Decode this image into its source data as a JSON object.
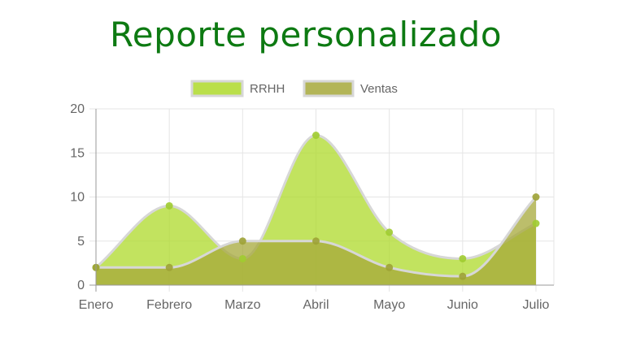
{
  "page": {
    "title": "Reporte personalizado"
  },
  "chart_data": {
    "type": "area",
    "title": "Reporte personalizado",
    "categories": [
      "Enero",
      "Febrero",
      "Marzo",
      "Abril",
      "Mayo",
      "Junio",
      "Julio"
    ],
    "series": [
      {
        "name": "RRHH",
        "values": [
          2,
          9,
          3,
          17,
          6,
          3,
          7
        ],
        "fill": "#aed92a",
        "line": "#a0cc30"
      },
      {
        "name": "Ventas",
        "values": [
          2,
          2,
          5,
          5,
          2,
          1,
          10
        ],
        "fill": "#a6a83a",
        "line": "#9da235"
      }
    ],
    "ylim": [
      0,
      20
    ],
    "yticks": [
      "0",
      "5",
      "10",
      "15",
      "20"
    ],
    "grid": true,
    "legend": "top-center",
    "colors": {
      "title": "#0d7a12",
      "grid": "#e5e5e5",
      "axis": "#666666"
    }
  }
}
